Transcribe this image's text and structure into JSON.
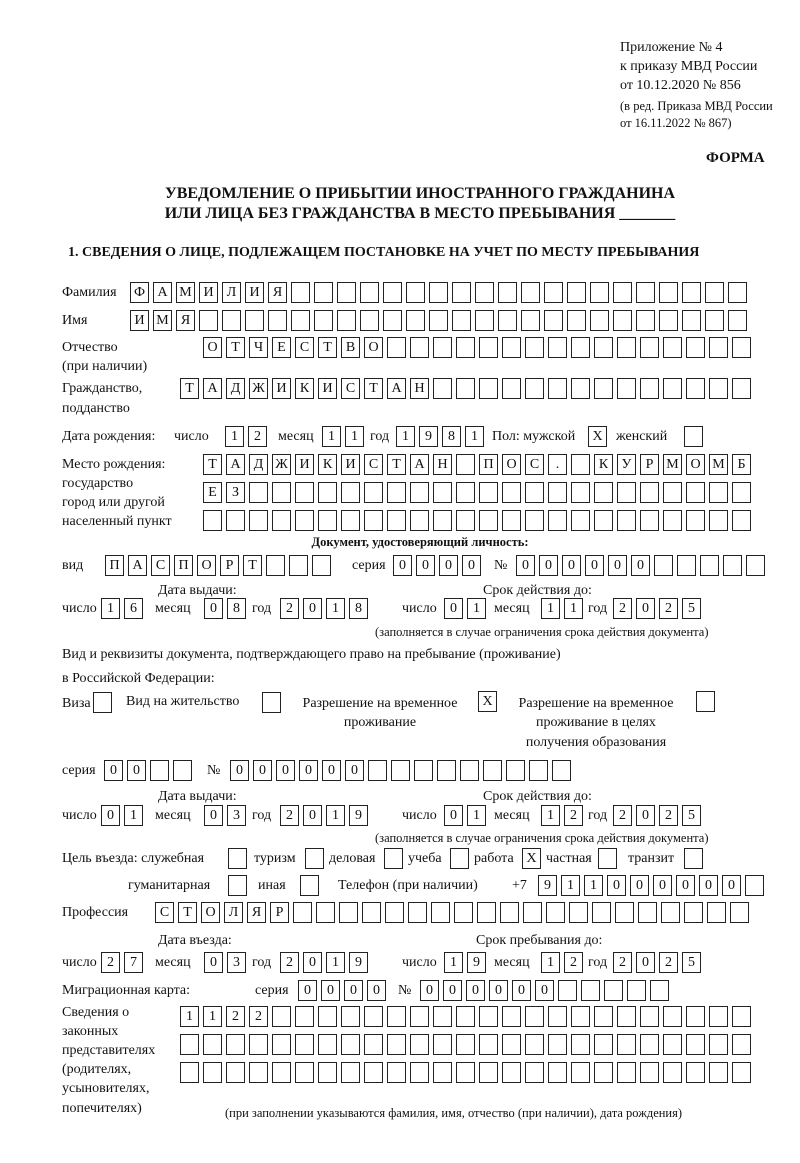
{
  "header": {
    "appendix": [
      "Приложение № 4",
      "к приказу МВД России",
      "от 10.12.2020 № 856"
    ],
    "revision": [
      "(в ред. Приказа МВД России",
      "от 16.11.2022 № 867)"
    ],
    "form_label": "ФОРМА",
    "title": [
      "УВЕДОМЛЕНИЕ О ПРИБЫТИИ ИНОСТРАННОГО ГРАЖДАНИНА",
      "ИЛИ ЛИЦА БЕЗ ГРАЖДАНСТВА В МЕСТО ПРЕБЫВАНИЯ _______"
    ],
    "section1": "1. СВЕДЕНИЯ О ЛИЦЕ, ПОДЛЕЖАЩЕМ ПОСТАНОВКЕ НА УЧЕТ ПО МЕСТУ ПРЕБЫВАНИЯ"
  },
  "labels": {
    "surname": "Фамилия",
    "name": "Имя",
    "patronymic": "Отчество",
    "patronymic_note": "(при наличии)",
    "citizenship": "Гражданство,",
    "citizenship2": "подданство",
    "dob": "Дата рождения:",
    "day": "число",
    "month": "месяц",
    "year": "год",
    "sex": "Пол: мужской",
    "female": "женский",
    "pob": [
      "Место рождения:",
      "государство",
      "город или другой",
      "населенный пункт"
    ],
    "id_doc": "Документ, удостоверяющий личность:",
    "kind": "вид",
    "series": "серия",
    "number": "№",
    "issue_date": "Дата выдачи:",
    "valid_until": "Срок действия до:",
    "validity_note": "(заполняется в случае ограничения срока действия документа)",
    "stay_doc": "Вид и реквизиты документа, подтверждающего право на пребывание (проживание)",
    "stay_doc2": "в Российской Федерации:",
    "visa": "Виза",
    "residence": "Вид на жительство",
    "trp": [
      "Разрешение на временное",
      "проживание"
    ],
    "trp_edu": [
      "Разрешение на временное",
      "проживание в целях",
      "получения образования"
    ],
    "purpose": "Цель въезда: служебная",
    "tourism": "туризм",
    "business": "деловая",
    "study": "учеба",
    "work": "работа",
    "private": "частная",
    "transit": "транзит",
    "humanitarian": "гуманитарная",
    "other": "иная",
    "phone": "Телефон (при наличии)",
    "phone_prefix": "+7",
    "profession": "Профессия",
    "entry_date": "Дата въезда:",
    "stay_until": "Срок пребывания до:",
    "migration_card": "Миграционная карта:",
    "representatives": [
      "Сведения о",
      "законных",
      "представителях",
      "(родителях,",
      "усыновителях,",
      "попечителях)"
    ],
    "rep_note": "(при заполнении указываются фамилия, имя, отчество (при наличии), дата рождения)"
  },
  "fields": {
    "surname": [
      "Ф",
      "А",
      "М",
      "И",
      "Л",
      "И",
      "Я",
      "",
      "",
      "",
      "",
      "",
      "",
      "",
      "",
      "",
      "",
      "",
      "",
      "",
      "",
      "",
      "",
      "",
      "",
      "",
      ""
    ],
    "name": [
      "И",
      "М",
      "Я",
      "",
      "",
      "",
      "",
      "",
      "",
      "",
      "",
      "",
      "",
      "",
      "",
      "",
      "",
      "",
      "",
      "",
      "",
      "",
      "",
      "",
      "",
      "",
      ""
    ],
    "patronymic": [
      "О",
      "Т",
      "Ч",
      "Е",
      "С",
      "Т",
      "В",
      "О",
      "",
      "",
      "",
      "",
      "",
      "",
      "",
      "",
      "",
      "",
      "",
      "",
      "",
      "",
      "",
      ""
    ],
    "citizenship": [
      "Т",
      "А",
      "Д",
      "Ж",
      "И",
      "К",
      "И",
      "С",
      "Т",
      "А",
      "Н",
      "",
      "",
      "",
      "",
      "",
      "",
      "",
      "",
      "",
      "",
      "",
      "",
      "",
      ""
    ],
    "dob_day": [
      "1",
      "2"
    ],
    "dob_month": [
      "1",
      "1"
    ],
    "dob_year": [
      "1",
      "9",
      "8",
      "1"
    ],
    "sex_male": [
      "X"
    ],
    "sex_female": [
      ""
    ],
    "pob1": [
      "Т",
      "А",
      "Д",
      "Ж",
      "И",
      "К",
      "И",
      "С",
      "Т",
      "А",
      "Н",
      "",
      "П",
      "О",
      "С",
      ".",
      "",
      "К",
      "У",
      "Р",
      "М",
      "О",
      "М",
      "Б"
    ],
    "pob2": [
      "Е",
      "З",
      "",
      "",
      "",
      "",
      "",
      "",
      "",
      "",
      "",
      "",
      "",
      "",
      "",
      "",
      "",
      "",
      "",
      "",
      "",
      "",
      "",
      ""
    ],
    "pob3": [
      "",
      "",
      "",
      "",
      "",
      "",
      "",
      "",
      "",
      "",
      "",
      "",
      "",
      "",
      "",
      "",
      "",
      "",
      "",
      "",
      "",
      "",
      "",
      ""
    ],
    "doc_kind": [
      "П",
      "А",
      "С",
      "П",
      "О",
      "Р",
      "Т",
      "",
      "",
      ""
    ],
    "doc_series": [
      "0",
      "0",
      "0",
      "0"
    ],
    "doc_number": [
      "0",
      "0",
      "0",
      "0",
      "0",
      "0",
      "",
      "",
      "",
      "",
      ""
    ],
    "doc_issue_day": [
      "1",
      "6"
    ],
    "doc_issue_month": [
      "0",
      "8"
    ],
    "doc_issue_year": [
      "2",
      "0",
      "1",
      "8"
    ],
    "doc_valid_day": [
      "0",
      "1"
    ],
    "doc_valid_month": [
      "1",
      "1"
    ],
    "doc_valid_year": [
      "2",
      "0",
      "2",
      "5"
    ],
    "visa": [
      ""
    ],
    "residence": [
      ""
    ],
    "trp": [
      "X"
    ],
    "trp_edu": [
      ""
    ],
    "stay_series": [
      "0",
      "0",
      "",
      ""
    ],
    "stay_number": [
      "0",
      "0",
      "0",
      "0",
      "0",
      "0",
      "",
      "",
      "",
      "",
      "",
      "",
      "",
      "",
      ""
    ],
    "stay_issue_day": [
      "0",
      "1"
    ],
    "stay_issue_month": [
      "0",
      "3"
    ],
    "stay_issue_year": [
      "2",
      "0",
      "1",
      "9"
    ],
    "stay_valid_day": [
      "0",
      "1"
    ],
    "stay_valid_month": [
      "1",
      "2"
    ],
    "stay_valid_year": [
      "2",
      "0",
      "2",
      "5"
    ],
    "p_official": [
      ""
    ],
    "p_tourism": [
      ""
    ],
    "p_business": [
      ""
    ],
    "p_study": [
      ""
    ],
    "p_work": [
      "X"
    ],
    "p_private": [
      ""
    ],
    "p_transit": [
      ""
    ],
    "p_humanitarian": [
      ""
    ],
    "p_other": [
      ""
    ],
    "phone": [
      "9",
      "1",
      "1",
      "0",
      "0",
      "0",
      "0",
      "0",
      "0",
      ""
    ],
    "profession": [
      "С",
      "Т",
      "О",
      "Л",
      "Я",
      "Р",
      "",
      "",
      "",
      "",
      "",
      "",
      "",
      "",
      "",
      "",
      "",
      "",
      "",
      "",
      "",
      "",
      "",
      "",
      "",
      ""
    ],
    "entry_day": [
      "2",
      "7"
    ],
    "entry_month": [
      "0",
      "3"
    ],
    "entry_year": [
      "2",
      "0",
      "1",
      "9"
    ],
    "stay_day": [
      "1",
      "9"
    ],
    "stay_month": [
      "1",
      "2"
    ],
    "stay_year": [
      "2",
      "0",
      "2",
      "5"
    ],
    "mc_series": [
      "0",
      "0",
      "0",
      "0"
    ],
    "mc_number": [
      "0",
      "0",
      "0",
      "0",
      "0",
      "0",
      "",
      "",
      "",
      "",
      ""
    ],
    "rep1": [
      "1",
      "1",
      "2",
      "2",
      "",
      "",
      "",
      "",
      "",
      "",
      "",
      "",
      "",
      "",
      "",
      "",
      "",
      "",
      "",
      "",
      "",
      "",
      "",
      "",
      ""
    ],
    "rep2": [
      "",
      "",
      "",
      "",
      "",
      "",
      "",
      "",
      "",
      "",
      "",
      "",
      "",
      "",
      "",
      "",
      "",
      "",
      "",
      "",
      "",
      "",
      "",
      "",
      ""
    ],
    "rep3": [
      "",
      "",
      "",
      "",
      "",
      "",
      "",
      "",
      "",
      "",
      "",
      "",
      "",
      "",
      "",
      "",
      "",
      "",
      "",
      "",
      "",
      "",
      "",
      "",
      ""
    ]
  }
}
